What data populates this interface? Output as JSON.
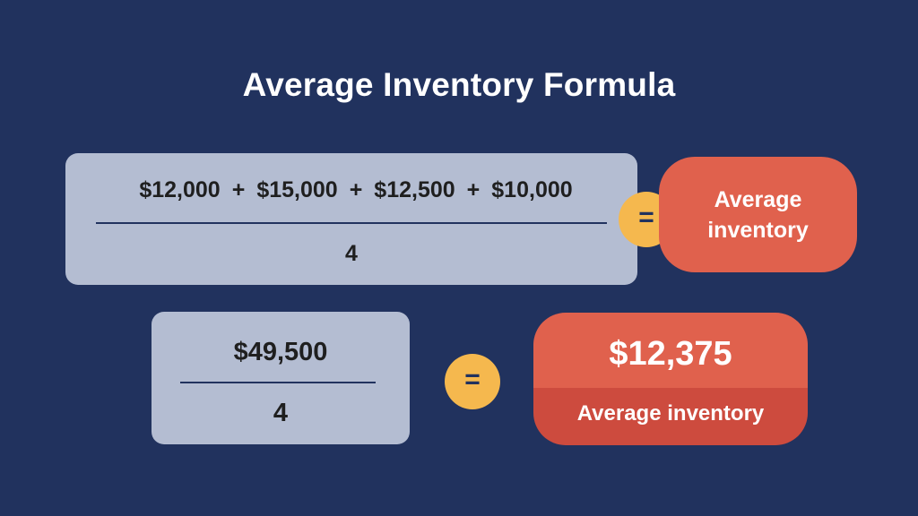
{
  "title": "Average Inventory Formula",
  "formula": {
    "terms": [
      "$12,000",
      "$15,000",
      "$12,500",
      "$10,000"
    ],
    "operator": "+",
    "denominator": "4",
    "equals": "=",
    "result_label": "Average inventory"
  },
  "calculation": {
    "numerator": "$49,500",
    "denominator": "4",
    "equals": "=",
    "result_value": "$12,375",
    "result_label": "Average inventory"
  },
  "colors": {
    "background": "#21325e",
    "box": "#b4bdd2",
    "equals_circle": "#f5b84e",
    "result_primary": "#e0614d",
    "result_secondary": "#cd4b3e"
  }
}
